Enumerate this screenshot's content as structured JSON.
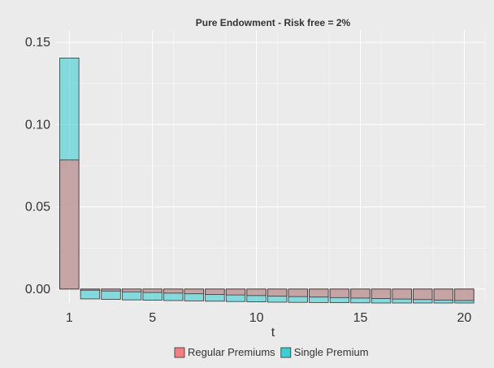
{
  "chart_data": {
    "type": "bar",
    "title": "Pure Endowment - Risk free = 2%",
    "xlabel": "t",
    "ylabel": "",
    "x_ticks": [
      1,
      5,
      10,
      15,
      20
    ],
    "y_ticks": [
      0.0,
      0.05,
      0.1,
      0.15
    ],
    "y_tick_labels": [
      "0.00",
      "0.05",
      "0.10",
      "0.15"
    ],
    "x_ticks_text": [
      "1",
      "5",
      "10",
      "15",
      "20"
    ],
    "xlim": [
      0.4,
      21.0
    ],
    "ylim": [
      -0.0085,
      0.157
    ],
    "grid": true,
    "legend_position": "bottom",
    "categories": [
      1,
      2,
      3,
      4,
      5,
      6,
      7,
      8,
      9,
      10,
      11,
      12,
      13,
      14,
      15,
      16,
      17,
      18,
      19,
      20
    ],
    "series": [
      {
        "name": "Regular Premiums",
        "color": "#f08080",
        "values": [
          0.0785,
          -0.0007,
          -0.0012,
          -0.0017,
          -0.0021,
          -0.0025,
          -0.0029,
          -0.0033,
          -0.0036,
          -0.004,
          -0.0043,
          -0.0046,
          -0.0049,
          -0.0052,
          -0.0055,
          -0.0058,
          -0.0061,
          -0.0064,
          -0.0067,
          -0.007
        ]
      },
      {
        "name": "Single Premium",
        "color": "#3ecdd0",
        "values": [
          0.1405,
          -0.006,
          -0.0063,
          -0.0066,
          -0.0068,
          -0.007,
          -0.0072,
          -0.0074,
          -0.0076,
          -0.0078,
          -0.008,
          -0.0081,
          -0.0082,
          -0.0083,
          -0.0084,
          -0.0085,
          -0.0085,
          -0.0085,
          -0.0085,
          -0.0085
        ]
      }
    ]
  }
}
